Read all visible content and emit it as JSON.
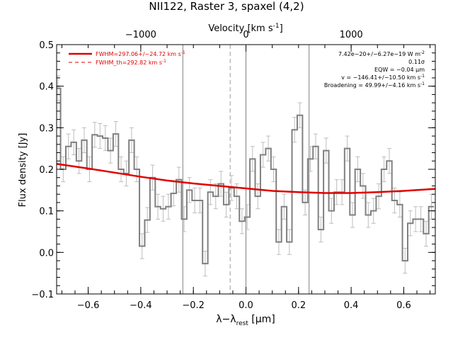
{
  "chart_data": {
    "type": "line",
    "title": "NII122, Raster 3, spaxel (4,2)",
    "xlabel_main": "λ−λ",
    "xlabel_sub": "rest",
    "xlabel_unit": " [μm]",
    "ylabel": "Flux density [Jy]",
    "top_axis_label": "Velocity [km s",
    "top_axis_label_sup": "-1",
    "top_axis_label_end": "]",
    "xlim": [
      -0.72,
      0.72
    ],
    "ylim": [
      -0.1,
      0.5
    ],
    "x_ticks": [
      -0.6,
      -0.4,
      -0.2,
      0.0,
      0.2,
      0.4,
      0.6
    ],
    "x_tick_labels": [
      "−0.6",
      "−0.4",
      "−0.2",
      "0.0",
      "0.2",
      "0.4",
      "0.6"
    ],
    "y_ticks": [
      -0.1,
      0.0,
      0.1,
      0.2,
      0.3,
      0.4,
      0.5
    ],
    "y_tick_labels": [
      "−0.1",
      "0.0",
      "0.1",
      "0.2",
      "0.3",
      "0.4",
      "0.5"
    ],
    "top_ticks_x": [
      -0.4,
      0.0,
      0.4
    ],
    "top_tick_labels": [
      "−1000",
      "0",
      "1000"
    ],
    "vlines_solid": [
      -0.24,
      0.0,
      0.24
    ],
    "vlines_dashed": [
      -0.06
    ],
    "legend": {
      "position": "top-left",
      "fit": "FWHM=297.06+/−24.72 km s",
      "fit_sup": "-1",
      "theory": "FWHM_th=292.82 km s",
      "theory_sup": "-1"
    },
    "annotations": {
      "flux": "7.42e−20+/−6.27e−19 W m",
      "flux_sup": "-2",
      "sigma": "0.11σ",
      "eqw": "EQW = −0.04 μm",
      "velocity": "v = −146.41+/−10.50 km s",
      "velocity_sup": "-1",
      "broadening": "Broadening = 49.99+/−4.16 km s",
      "broadening_sup": "-1"
    },
    "colors": {
      "data": "#808080",
      "error": "#bdbdbd",
      "fit": "#e00000",
      "vline": "#808080"
    },
    "series": [
      {
        "kind": "step",
        "x": [
          -0.715,
          -0.695,
          -0.675,
          -0.655,
          -0.635,
          -0.615,
          -0.595,
          -0.575,
          -0.555,
          -0.535,
          -0.515,
          -0.495,
          -0.475,
          -0.455,
          -0.435,
          -0.415,
          -0.395,
          -0.375,
          -0.355,
          -0.335,
          -0.315,
          -0.295,
          -0.275,
          -0.255,
          -0.235,
          -0.215,
          -0.195,
          -0.175,
          -0.155,
          -0.135,
          -0.115,
          -0.095,
          -0.075,
          -0.055,
          -0.035,
          -0.015,
          0.005,
          0.025,
          0.045,
          0.065,
          0.085,
          0.105,
          0.125,
          0.145,
          0.165,
          0.185,
          0.205,
          0.225,
          0.245,
          0.265,
          0.285,
          0.305,
          0.325,
          0.345,
          0.365,
          0.385,
          0.405,
          0.425,
          0.445,
          0.465,
          0.485,
          0.505,
          0.525,
          0.545,
          0.565,
          0.585,
          0.605,
          0.625,
          0.645,
          0.665,
          0.685,
          0.705
        ],
        "values": [
          0.395,
          0.2,
          0.255,
          0.265,
          0.22,
          0.27,
          0.2,
          0.283,
          0.28,
          0.275,
          0.245,
          0.285,
          0.2,
          0.19,
          0.27,
          0.2,
          0.015,
          0.078,
          0.18,
          0.11,
          0.105,
          0.11,
          0.142,
          0.175,
          0.08,
          0.15,
          0.125,
          0.125,
          -0.027,
          0.145,
          0.135,
          0.165,
          0.115,
          0.155,
          0.135,
          0.075,
          0.085,
          0.225,
          0.135,
          0.235,
          0.25,
          0.2,
          0.025,
          0.11,
          0.025,
          0.295,
          0.33,
          0.12,
          0.225,
          0.255,
          0.055,
          0.245,
          0.1,
          0.145,
          0.145,
          0.25,
          0.09,
          0.2,
          0.16,
          0.09,
          0.1,
          0.135,
          0.2,
          0.22,
          0.125,
          0.115,
          -0.02,
          0.07,
          0.08,
          0.08,
          0.045,
          0.11
        ],
        "errors": [
          0.03,
          0.03,
          0.03,
          0.03,
          0.03,
          0.03,
          0.03,
          0.03,
          0.03,
          0.03,
          0.03,
          0.03,
          0.03,
          0.03,
          0.03,
          0.03,
          0.03,
          0.03,
          0.03,
          0.03,
          0.03,
          0.03,
          0.03,
          0.03,
          0.03,
          0.03,
          0.03,
          0.03,
          0.03,
          0.03,
          0.03,
          0.03,
          0.03,
          0.03,
          0.03,
          0.03,
          0.03,
          0.03,
          0.03,
          0.03,
          0.03,
          0.03,
          0.03,
          0.03,
          0.03,
          0.03,
          0.03,
          0.03,
          0.03,
          0.03,
          0.03,
          0.03,
          0.03,
          0.03,
          0.03,
          0.03,
          0.03,
          0.03,
          0.03,
          0.03,
          0.03,
          0.03,
          0.03,
          0.03,
          0.03,
          0.03,
          0.03,
          0.03,
          0.03,
          0.03,
          0.03,
          0.03
        ]
      },
      {
        "kind": "fit",
        "x": [
          -0.72,
          -0.6,
          -0.5,
          -0.4,
          -0.3,
          -0.2,
          -0.1,
          0.0,
          0.1,
          0.2,
          0.3,
          0.4,
          0.5,
          0.6,
          0.72
        ],
        "values": [
          0.213,
          0.202,
          0.192,
          0.182,
          0.173,
          0.166,
          0.16,
          0.154,
          0.148,
          0.145,
          0.143,
          0.143,
          0.145,
          0.148,
          0.153
        ]
      }
    ]
  }
}
